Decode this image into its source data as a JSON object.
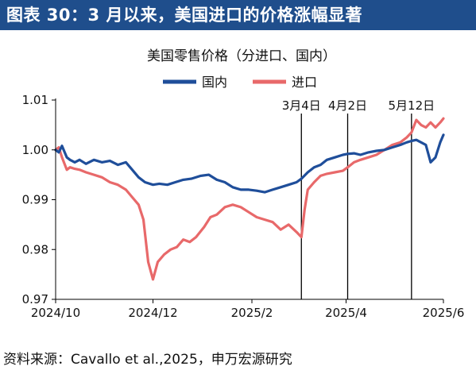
{
  "header": {
    "title": "图表 30：3 月以来，美国进口的价格涨幅显著"
  },
  "source": {
    "text": "资料来源：Cavallo et al.,2025，申万宏源研究"
  },
  "chart_data": {
    "type": "line",
    "title": "美国零售价格（分进口、国内）",
    "ylim": [
      0.97,
      1.01
    ],
    "yticks": [
      "0.97",
      "0.98",
      "0.99",
      "1.00",
      "1.01"
    ],
    "xticks": [
      "2024/10",
      "2024/12",
      "2025/2",
      "2025/4",
      "2025/6"
    ],
    "xrange": [
      "2024-10-01",
      "2025-06-01"
    ],
    "grid": false,
    "legend": "top",
    "series": [
      {
        "name": "国内",
        "color": "#1f4e9a",
        "x": [
          "2024-10-01",
          "2024-10-03",
          "2024-10-05",
          "2024-10-08",
          "2024-10-10",
          "2024-10-13",
          "2024-10-16",
          "2024-10-20",
          "2024-10-25",
          "2024-10-30",
          "2024-11-04",
          "2024-11-09",
          "2024-11-14",
          "2024-11-18",
          "2024-11-22",
          "2024-11-26",
          "2024-12-01",
          "2024-12-05",
          "2024-12-10",
          "2024-12-15",
          "2024-12-20",
          "2024-12-25",
          "2024-12-31",
          "2025-01-05",
          "2025-01-10",
          "2025-01-15",
          "2025-01-20",
          "2025-01-25",
          "2025-01-30",
          "2025-02-04",
          "2025-02-09",
          "2025-02-14",
          "2025-02-19",
          "2025-02-24",
          "2025-03-01",
          "2025-03-04",
          "2025-03-08",
          "2025-03-12",
          "2025-03-16",
          "2025-03-20",
          "2025-03-25",
          "2025-03-30",
          "2025-04-02",
          "2025-04-06",
          "2025-04-10",
          "2025-04-15",
          "2025-04-20",
          "2025-04-25",
          "2025-04-30",
          "2025-05-05",
          "2025-05-09",
          "2025-05-12",
          "2025-05-15",
          "2025-05-18",
          "2025-05-21",
          "2025-05-24",
          "2025-05-27",
          "2025-05-30",
          "2025-06-01"
        ],
        "y": [
          1.0,
          0.9995,
          1.0008,
          0.9985,
          0.998,
          0.9975,
          0.998,
          0.9972,
          0.998,
          0.9975,
          0.9978,
          0.997,
          0.9975,
          0.996,
          0.9945,
          0.9935,
          0.993,
          0.9932,
          0.993,
          0.9935,
          0.994,
          0.9942,
          0.9948,
          0.995,
          0.994,
          0.9935,
          0.9925,
          0.992,
          0.992,
          0.9918,
          0.9915,
          0.992,
          0.9925,
          0.993,
          0.9935,
          0.9942,
          0.9955,
          0.9965,
          0.997,
          0.998,
          0.9985,
          0.999,
          0.9992,
          0.9993,
          0.999,
          0.9995,
          0.9998,
          1.0,
          1.0005,
          1.001,
          1.0015,
          1.0018,
          1.002,
          1.0015,
          1.001,
          0.9975,
          0.9985,
          1.0015,
          1.003
        ]
      },
      {
        "name": "进口",
        "color": "#e8696a",
        "x": [
          "2024-10-01",
          "2024-10-03",
          "2024-10-05",
          "2024-10-08",
          "2024-10-10",
          "2024-10-13",
          "2024-10-16",
          "2024-10-20",
          "2024-10-25",
          "2024-10-30",
          "2024-11-04",
          "2024-11-09",
          "2024-11-14",
          "2024-11-18",
          "2024-11-22",
          "2024-11-25",
          "2024-11-28",
          "2024-12-01",
          "2024-12-04",
          "2024-12-08",
          "2024-12-12",
          "2024-12-16",
          "2024-12-20",
          "2024-12-24",
          "2024-12-28",
          "2025-01-02",
          "2025-01-06",
          "2025-01-10",
          "2025-01-15",
          "2025-01-20",
          "2025-01-25",
          "2025-01-30",
          "2025-02-04",
          "2025-02-09",
          "2025-02-14",
          "2025-02-19",
          "2025-02-24",
          "2025-03-01",
          "2025-03-04",
          "2025-03-06",
          "2025-03-08",
          "2025-03-12",
          "2025-03-16",
          "2025-03-20",
          "2025-03-25",
          "2025-03-30",
          "2025-04-02",
          "2025-04-06",
          "2025-04-10",
          "2025-04-15",
          "2025-04-20",
          "2025-04-25",
          "2025-04-30",
          "2025-05-05",
          "2025-05-09",
          "2025-05-12",
          "2025-05-15",
          "2025-05-18",
          "2025-05-21",
          "2025-05-24",
          "2025-05-27",
          "2025-05-30",
          "2025-06-01"
        ],
        "y": [
          1.0,
          1.0005,
          0.9985,
          0.996,
          0.9965,
          0.9962,
          0.996,
          0.9955,
          0.995,
          0.9945,
          0.9935,
          0.993,
          0.992,
          0.9905,
          0.989,
          0.986,
          0.9775,
          0.974,
          0.9775,
          0.979,
          0.98,
          0.9805,
          0.982,
          0.9815,
          0.9825,
          0.9845,
          0.9865,
          0.987,
          0.9885,
          0.989,
          0.9885,
          0.9875,
          0.9865,
          0.986,
          0.9855,
          0.984,
          0.985,
          0.9835,
          0.9825,
          0.988,
          0.992,
          0.9935,
          0.9948,
          0.9952,
          0.9955,
          0.9958,
          0.9965,
          0.9975,
          0.998,
          0.9985,
          0.999,
          1.0,
          1.001,
          1.0015,
          1.0025,
          1.0035,
          1.006,
          1.005,
          1.0045,
          1.0055,
          1.0045,
          1.0055,
          1.0063
        ]
      }
    ],
    "annotations": [
      {
        "date": "2025-03-04",
        "label": "3月4日"
      },
      {
        "date": "2025-04-02",
        "label": "4月2日"
      },
      {
        "date": "2025-05-12",
        "label": "5月12日"
      }
    ]
  }
}
